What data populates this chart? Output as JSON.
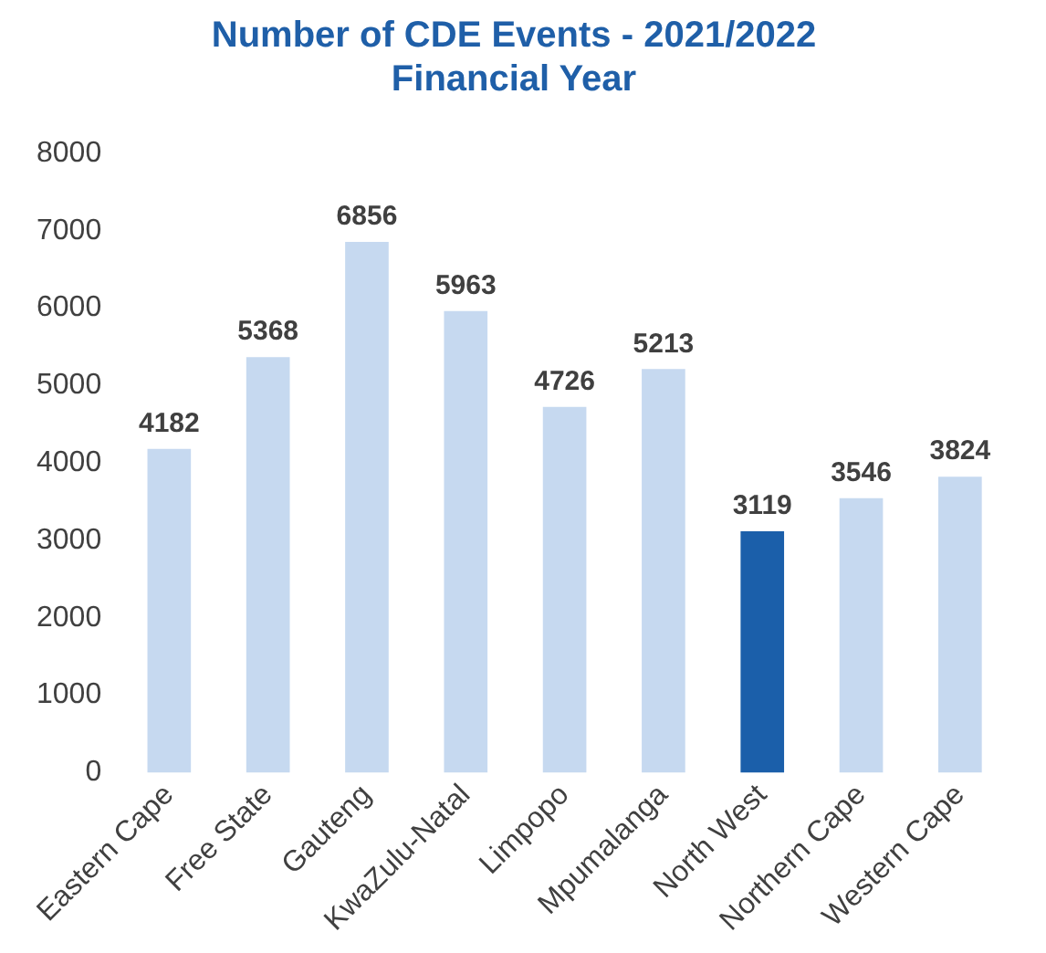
{
  "chart_data": {
    "type": "bar",
    "title": "Number of CDE Events - 2021/2022\nFinancial Year",
    "categories": [
      "Eastern Cape",
      "Free State",
      "Gauteng",
      "KwaZulu-Natal",
      "Limpopo",
      "Mpumalanga",
      "North West",
      "Northern Cape",
      "Western Cape"
    ],
    "values": [
      4182,
      5368,
      6856,
      5963,
      4726,
      5213,
      3119,
      3546,
      3824
    ],
    "colors": [
      "#c6d9f0",
      "#c6d9f0",
      "#c6d9f0",
      "#c6d9f0",
      "#c6d9f0",
      "#c6d9f0",
      "#1b5faa",
      "#c6d9f0",
      "#c6d9f0"
    ],
    "ylim": [
      0,
      8000
    ],
    "yticks": [
      0,
      1000,
      2000,
      3000,
      4000,
      5000,
      6000,
      7000,
      8000
    ],
    "grid": false,
    "legend": false,
    "data_labels": true
  }
}
